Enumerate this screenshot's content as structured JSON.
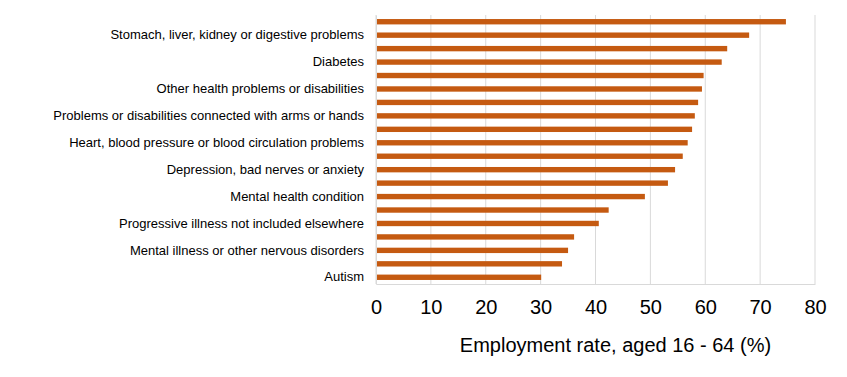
{
  "chart_data": {
    "type": "bar",
    "orientation": "horizontal",
    "x_label": "Employment rate, aged 16 - 64 (%)",
    "categories": [
      null,
      "Stomach, liver, kidney or digestive problems",
      null,
      "Diabetes",
      null,
      "Other health problems or disabilities",
      null,
      "Problems or disabilities connected with arms or hands",
      null,
      "Heart, blood pressure or blood circulation problems",
      null,
      "Depression, bad nerves or anxiety",
      null,
      "Mental health condition",
      null,
      "Progressive illness not included elsewhere",
      null,
      "Mental illness or other nervous disorders",
      null,
      "Autism"
    ],
    "values": [
      74.7,
      68,
      64,
      63,
      59.7,
      59.4,
      58.7,
      58.1,
      57.6,
      56.8,
      55.9,
      54.5,
      53.2,
      49,
      42.4,
      40.6,
      36.1,
      35,
      33.9,
      30.1
    ],
    "color": "#c55a11",
    "xlim": [
      0,
      80
    ],
    "xticks": [
      0,
      10,
      20,
      30,
      40,
      50,
      60,
      70,
      80
    ],
    "grid": true
  }
}
